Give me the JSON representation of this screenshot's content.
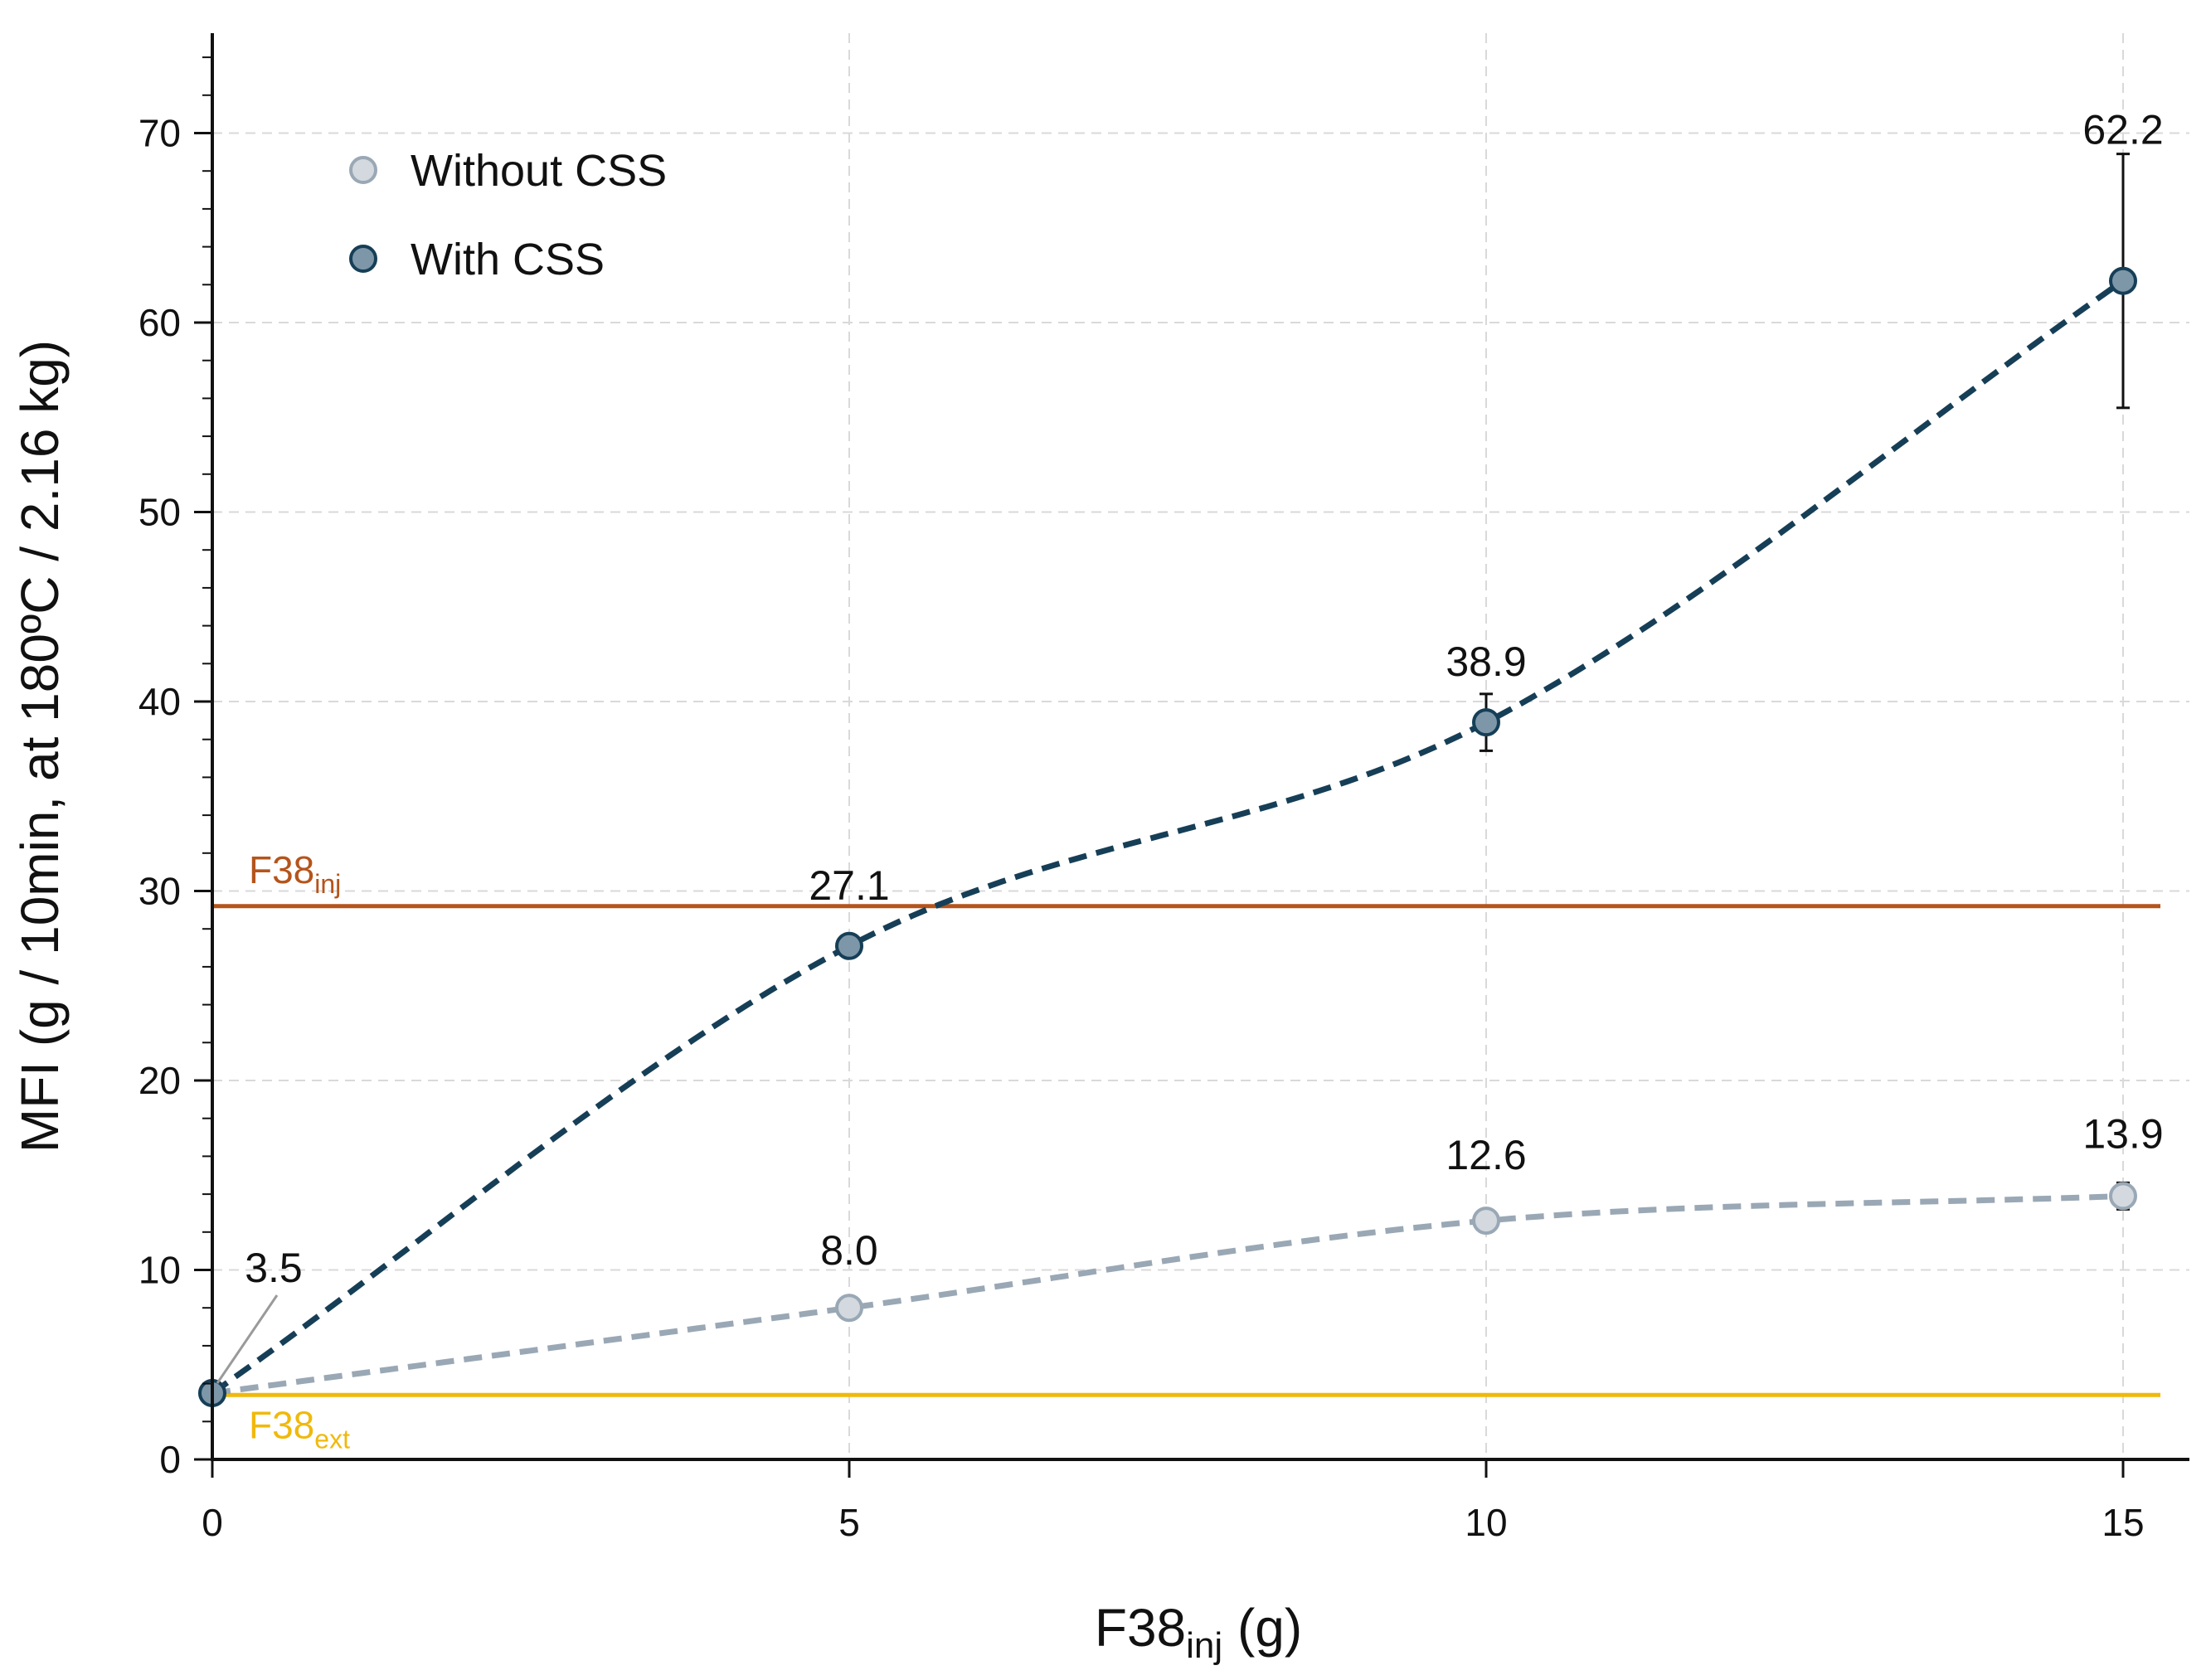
{
  "chart_data": {
    "type": "line",
    "title": "",
    "xlabel": {
      "main": "F38",
      "sub": "inj",
      "suffix": " (g)"
    },
    "ylabel": "MFI (g / 10min, at 180ºC / 2.16 kg)",
    "xlim": [
      0,
      15.5
    ],
    "ylim": [
      0,
      75
    ],
    "xticks": [
      0,
      5,
      10,
      15
    ],
    "xtick_labels": [
      "0",
      "5",
      "10",
      "15"
    ],
    "yticks": [
      0,
      10,
      20,
      30,
      40,
      50,
      60,
      70
    ],
    "ytick_labels": [
      "0",
      "10",
      "20",
      "30",
      "40",
      "50",
      "60",
      "70"
    ],
    "grid": true,
    "legend": {
      "position": "top-left"
    },
    "series": [
      {
        "name": "Without CSS",
        "color": "#9aa8b5",
        "marker_fill": "#d3d9df",
        "x": [
          0,
          5,
          10,
          15
        ],
        "values": [
          3.5,
          8.0,
          12.6,
          13.9
        ],
        "errors": [
          0.2,
          0.3,
          0.4,
          0.7
        ],
        "labels": [
          "",
          "8.0",
          "12.6",
          "13.9"
        ]
      },
      {
        "name": "With CSS",
        "color": "#163f57",
        "marker_fill": "#7d97a9",
        "x": [
          0,
          5,
          10,
          15
        ],
        "values": [
          3.5,
          27.1,
          38.9,
          62.2
        ],
        "errors": [
          0.2,
          0.3,
          1.5,
          6.7
        ],
        "labels": [
          "3.5",
          "27.1",
          "38.9",
          "62.2"
        ]
      }
    ],
    "reference_lines": [
      {
        "name": "F38",
        "sub": "inj",
        "value": 29.2,
        "color": "#b5541b"
      },
      {
        "name": "F38",
        "sub": "ext",
        "value": 3.4,
        "color": "#f0b90b"
      }
    ]
  }
}
